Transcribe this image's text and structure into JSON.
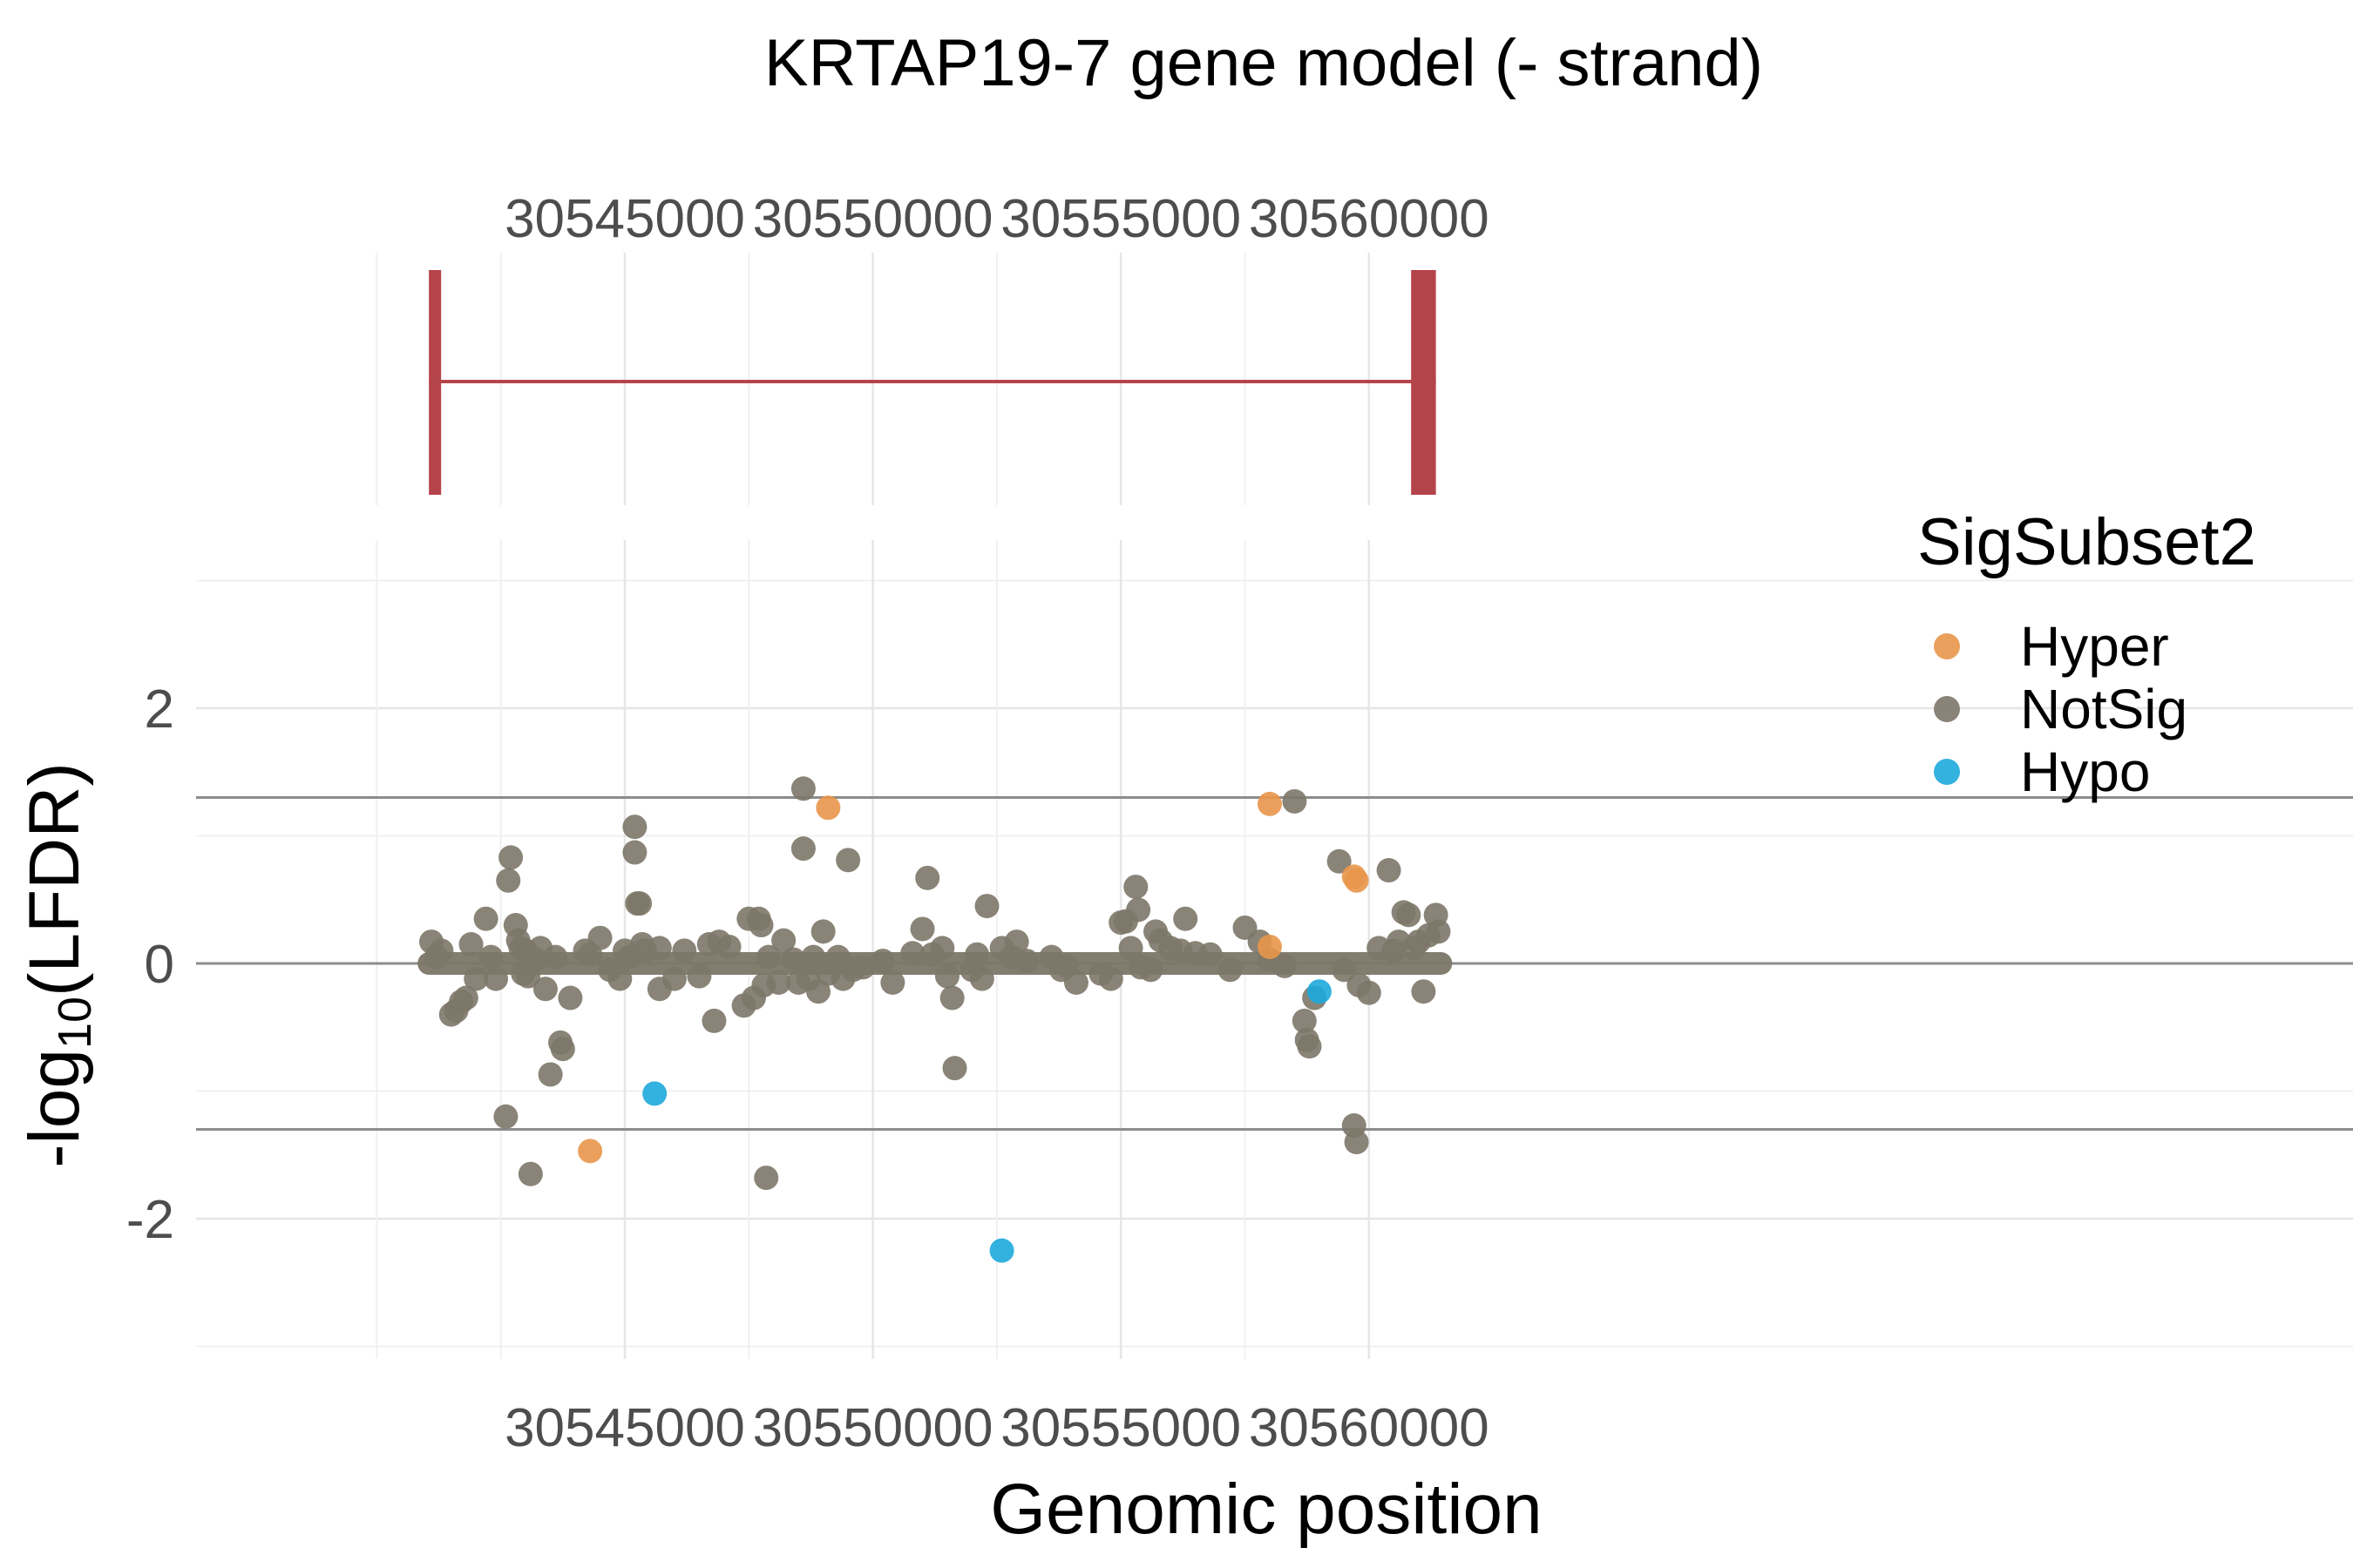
{
  "chart_data": {
    "type": "scatter",
    "title": "KRTAP19-7 gene model (- strand)",
    "xlabel": "Genomic position",
    "ylabel": "-log10(LFDR)",
    "ylabel_parts": {
      "prefix": "-log",
      "subscript": "10",
      "suffix": "(LFDR)"
    },
    "xlim": [
      30540000,
      30562000
    ],
    "ylim": [
      -3,
      3
    ],
    "x_ticks": [
      30545000,
      30550000,
      30555000,
      30560000
    ],
    "x_tick_labels": [
      "30545000",
      "30550000",
      "30555000",
      "30560000"
    ],
    "y_ticks": [
      2,
      0,
      -2
    ],
    "y_tick_labels": [
      "2",
      "0",
      "-2"
    ],
    "hlines": [
      1.3,
      0,
      -1.3
    ],
    "grid": true,
    "legend": {
      "title": "SigSubset2",
      "placement": "top-right",
      "entries": [
        {
          "label": "Hyper",
          "color": "#E8964A"
        },
        {
          "label": "NotSig",
          "color": "#7C7768"
        },
        {
          "label": "Hypo",
          "color": "#1DA8DB"
        }
      ]
    },
    "gene_model": {
      "strand": "-",
      "color": "#B5444A",
      "start": 30541050,
      "end": 30561350,
      "exons": [
        [
          30541050,
          30541150
        ],
        [
          30560850,
          30561350
        ]
      ]
    },
    "series": [
      {
        "name": "NotSig",
        "color": "#7C7768",
        "points": [
          [
            30541100,
            0.17
          ],
          [
            30541200,
            0.05
          ],
          [
            30541300,
            0.1
          ],
          [
            30541500,
            -0.4
          ],
          [
            30541600,
            -0.37
          ],
          [
            30541700,
            -0.3
          ],
          [
            30541800,
            -0.27
          ],
          [
            30541900,
            0.15
          ],
          [
            30542000,
            -0.12
          ],
          [
            30542200,
            0.35
          ],
          [
            30542300,
            0.05
          ],
          [
            30542400,
            -0.12
          ],
          [
            30542600,
            -1.2
          ],
          [
            30542650,
            0.65
          ],
          [
            30542700,
            0.83
          ],
          [
            30542800,
            0.3
          ],
          [
            30542850,
            0.18
          ],
          [
            30542900,
            0.12
          ],
          [
            30542950,
            -0.08
          ],
          [
            30543000,
            0.1
          ],
          [
            30543050,
            -0.1
          ],
          [
            30543100,
            -1.65
          ],
          [
            30543200,
            0.03
          ],
          [
            30543300,
            0.12
          ],
          [
            30543400,
            -0.2
          ],
          [
            30543500,
            -0.87
          ],
          [
            30543600,
            0.05
          ],
          [
            30543700,
            -0.62
          ],
          [
            30543750,
            -0.67
          ],
          [
            30543900,
            -0.27
          ],
          [
            30544200,
            0.1
          ],
          [
            30544300,
            0.07
          ],
          [
            30544500,
            0.2
          ],
          [
            30544700,
            -0.05
          ],
          [
            30544900,
            -0.12
          ],
          [
            30545000,
            0.1
          ],
          [
            30545100,
            0.05
          ],
          [
            30545200,
            1.07
          ],
          [
            30545200,
            0.87
          ],
          [
            30545250,
            0.47
          ],
          [
            30545300,
            0.47
          ],
          [
            30545350,
            0.15
          ],
          [
            30545400,
            0.1
          ],
          [
            30545700,
            0.12
          ],
          [
            30545700,
            -0.2
          ],
          [
            30546000,
            -0.12
          ],
          [
            30546200,
            0.1
          ],
          [
            30546500,
            -0.1
          ],
          [
            30546700,
            0.15
          ],
          [
            30546800,
            -0.45
          ],
          [
            30546900,
            0.17
          ],
          [
            30547100,
            0.13
          ],
          [
            30547400,
            -0.33
          ],
          [
            30547500,
            0.35
          ],
          [
            30547600,
            -0.27
          ],
          [
            30547700,
            0.35
          ],
          [
            30547750,
            0.3
          ],
          [
            30547800,
            -0.17
          ],
          [
            30547850,
            -1.68
          ],
          [
            30547900,
            0.05
          ],
          [
            30548100,
            -0.15
          ],
          [
            30548200,
            0.18
          ],
          [
            30548400,
            0.03
          ],
          [
            30548500,
            -0.15
          ],
          [
            30548600,
            1.37
          ],
          [
            30548600,
            0.9
          ],
          [
            30548700,
            -0.12
          ],
          [
            30548800,
            0.05
          ],
          [
            30548900,
            -0.22
          ],
          [
            30549000,
            0.25
          ],
          [
            30549100,
            -0.08
          ],
          [
            30549300,
            0.05
          ],
          [
            30549400,
            -0.12
          ],
          [
            30549500,
            0.81
          ],
          [
            30549600,
            -0.05
          ],
          [
            30549800,
            -0.03
          ],
          [
            30550200,
            0.02
          ],
          [
            30550400,
            -0.15
          ],
          [
            30550800,
            0.08
          ],
          [
            30551000,
            0.27
          ],
          [
            30551100,
            0.67
          ],
          [
            30551200,
            0.07
          ],
          [
            30551400,
            0.12
          ],
          [
            30551500,
            -0.1
          ],
          [
            30551600,
            -0.27
          ],
          [
            30551650,
            -0.82
          ],
          [
            30552000,
            -0.05
          ],
          [
            30552100,
            0.07
          ],
          [
            30552200,
            -0.12
          ],
          [
            30552300,
            0.45
          ],
          [
            30552600,
            0.12
          ],
          [
            30552800,
            0.05
          ],
          [
            30552900,
            0.17
          ],
          [
            30553100,
            0.02
          ],
          [
            30553600,
            0.05
          ],
          [
            30553800,
            -0.05
          ],
          [
            30553900,
            -0.02
          ],
          [
            30554100,
            -0.15
          ],
          [
            30554600,
            -0.08
          ],
          [
            30554800,
            -0.12
          ],
          [
            30555000,
            0.32
          ],
          [
            30555100,
            0.33
          ],
          [
            30555200,
            0.12
          ],
          [
            30555300,
            0.6
          ],
          [
            30555350,
            0.42
          ],
          [
            30555400,
            -0.03
          ],
          [
            30555600,
            -0.05
          ],
          [
            30555700,
            0.25
          ],
          [
            30555800,
            0.18
          ],
          [
            30556000,
            0.12
          ],
          [
            30556200,
            0.1
          ],
          [
            30556300,
            0.35
          ],
          [
            30556500,
            0.08
          ],
          [
            30556800,
            0.07
          ],
          [
            30557200,
            -0.05
          ],
          [
            30557500,
            0.28
          ],
          [
            30557800,
            0.17
          ],
          [
            30558000,
            0.03
          ],
          [
            30558300,
            -0.02
          ],
          [
            30558500,
            1.27
          ],
          [
            30558700,
            -0.45
          ],
          [
            30558750,
            -0.6
          ],
          [
            30558800,
            -0.65
          ],
          [
            30558900,
            -0.27
          ],
          [
            30559400,
            0.8
          ],
          [
            30559500,
            -0.05
          ],
          [
            30559700,
            -1.27
          ],
          [
            30559750,
            -1.4
          ],
          [
            30559800,
            -0.17
          ],
          [
            30560000,
            -0.23
          ],
          [
            30560200,
            0.12
          ],
          [
            30560400,
            0.73
          ],
          [
            30560500,
            0.1
          ],
          [
            30560600,
            0.17
          ],
          [
            30560700,
            0.4
          ],
          [
            30560800,
            0.38
          ],
          [
            30560900,
            0.12
          ],
          [
            30561000,
            0.17
          ],
          [
            30561100,
            -0.22
          ],
          [
            30561200,
            0.22
          ],
          [
            30561350,
            0.38
          ],
          [
            30561400,
            0.25
          ]
        ]
      },
      {
        "name": "Hyper",
        "color": "#E8964A",
        "points": [
          [
            30544300,
            -1.47
          ],
          [
            30549100,
            1.22
          ],
          [
            30558000,
            1.25
          ],
          [
            30558000,
            0.13
          ],
          [
            30559700,
            0.68
          ],
          [
            30559750,
            0.65
          ]
        ]
      },
      {
        "name": "Hypo",
        "color": "#1DA8DB",
        "points": [
          [
            30545600,
            -1.02
          ],
          [
            30552600,
            -2.25
          ],
          [
            30559000,
            -0.22
          ]
        ]
      }
    ]
  }
}
